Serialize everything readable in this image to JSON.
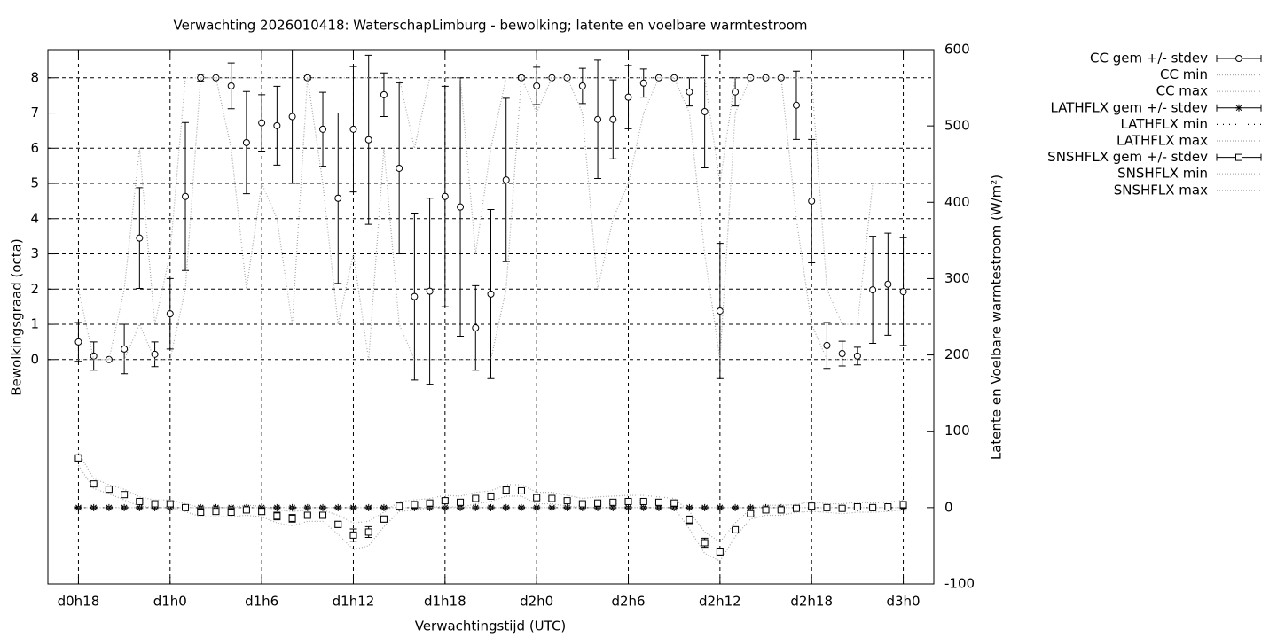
{
  "chart_data": {
    "type": "errorbar-line",
    "title": "Verwachting 2026010418: WaterschapLimburg - bewolking; latente en voelbare warmtestroom",
    "xlabel": "Verwachtingstijd (UTC)",
    "ylabel": "Bewolkingsgraad (octa)",
    "y2label": "Latente en Voelbare warmtestroom (W/m²)",
    "x": [
      18,
      19,
      20,
      21,
      22,
      23,
      24,
      25,
      26,
      27,
      28,
      29,
      30,
      31,
      32,
      33,
      34,
      35,
      36,
      37,
      38,
      39,
      40,
      41,
      42,
      43,
      44,
      45,
      46,
      47,
      48,
      49,
      50,
      51,
      52,
      53,
      54,
      55,
      56,
      57,
      58,
      59,
      60,
      61,
      62,
      63,
      64,
      65,
      66,
      67,
      68,
      69,
      70,
      71,
      72
    ],
    "xlim": [
      16,
      74
    ],
    "xticks": [
      {
        "value": 18,
        "label": "d0h18"
      },
      {
        "value": 24,
        "label": "d1h0"
      },
      {
        "value": 30,
        "label": "d1h6"
      },
      {
        "value": 36,
        "label": "d1h12"
      },
      {
        "value": 42,
        "label": "d1h18"
      },
      {
        "value": 48,
        "label": "d2h0"
      },
      {
        "value": 54,
        "label": "d2h6"
      },
      {
        "value": 60,
        "label": "d2h12"
      },
      {
        "value": 66,
        "label": "d2h18"
      },
      {
        "value": 72,
        "label": "d3h0"
      }
    ],
    "ylim": [
      -6.37,
      8.8
    ],
    "yticks": [
      0,
      1,
      2,
      3,
      4,
      5,
      6,
      7,
      8
    ],
    "y2lim": [
      -100,
      600
    ],
    "y2ticks": [
      -100,
      0,
      100,
      200,
      300,
      400,
      500,
      600
    ],
    "grid": true,
    "legend": "outside-top-right",
    "series": [
      {
        "name": "CC gem +/- stdev",
        "color": "#000000",
        "style": "errorbars",
        "marker": "circle",
        "values": [
          0.5,
          0.1,
          0,
          0.3,
          3.45,
          0.15,
          1.3,
          4.63,
          8,
          8,
          7.77,
          6.16,
          6.72,
          6.64,
          6.9,
          8,
          6.54,
          4.58,
          6.54,
          6.24,
          7.52,
          5.43,
          1.79,
          1.94,
          4.63,
          4.33,
          0.9,
          1.86,
          5.1,
          8,
          7.77,
          8,
          8,
          7.77,
          6.82,
          6.82,
          7.45,
          7.85,
          8,
          8,
          7.6,
          7.04,
          1.38,
          7.6,
          8,
          8,
          8,
          7.22,
          4.5,
          0.4,
          0.17,
          0.1,
          1.98,
          2.14,
          1.93
        ],
        "errors": [
          0.55,
          0.4,
          0,
          0.7,
          1.43,
          0.35,
          1.0,
          2.1,
          0.1,
          0,
          0.65,
          1.45,
          0.8,
          1.12,
          1.9,
          0.05,
          1.05,
          2.42,
          1.78,
          2.4,
          0.62,
          2.43,
          2.37,
          2.64,
          3.13,
          3.67,
          1.2,
          2.4,
          2.32,
          0.05,
          0.53,
          0,
          0,
          0.5,
          1.68,
          1.12,
          0.9,
          0.4,
          0,
          0,
          0.4,
          1.6,
          1.92,
          0.4,
          0,
          0,
          0,
          0.97,
          1.75,
          0.65,
          0.35,
          0.25,
          1.52,
          1.45,
          1.53
        ]
      },
      {
        "name": "CC min",
        "color": "#aaaaaa",
        "style": "dotted",
        "values": [
          0,
          0,
          0,
          0,
          1,
          0,
          0,
          2,
          8,
          8,
          6,
          2,
          5,
          4,
          1,
          8,
          5,
          1,
          3,
          0,
          6,
          1,
          0,
          0,
          0,
          0,
          0,
          0,
          2,
          8,
          7,
          8,
          8,
          7,
          2,
          4,
          5,
          7,
          8,
          8,
          7,
          3,
          0,
          7,
          8,
          8,
          8,
          4,
          1,
          0,
          0,
          0,
          0,
          0,
          0
        ]
      },
      {
        "name": "CC max",
        "color": "#aaaaaa",
        "style": "dotted",
        "values": [
          2,
          0,
          0,
          2,
          6,
          1,
          3,
          8,
          8,
          8,
          8,
          8,
          8,
          8,
          8,
          8,
          8,
          8,
          8,
          8,
          8,
          8,
          6,
          8,
          8,
          8,
          3,
          6,
          8,
          8,
          8,
          8,
          8,
          8,
          8,
          8,
          8,
          8,
          8,
          8,
          8,
          8,
          5,
          8,
          8,
          8,
          8,
          8,
          8,
          2,
          1,
          1,
          5,
          5,
          5
        ]
      },
      {
        "name": "LATHFLX gem +/- stdev",
        "color": "#000000",
        "style": "errorbars",
        "marker": "star",
        "axis": "y2",
        "values": [
          0,
          0,
          0,
          0,
          0,
          0,
          0,
          0,
          0,
          0,
          0,
          0,
          0,
          0,
          0,
          0,
          0,
          0,
          0,
          0,
          0,
          0,
          0,
          0,
          0,
          0,
          0,
          0,
          0,
          0,
          0,
          0,
          0,
          0,
          0,
          0,
          0,
          0,
          0,
          0,
          0,
          0,
          0,
          0,
          0,
          0,
          0,
          0,
          0,
          0,
          0,
          0,
          0,
          0,
          0
        ],
        "errors": [
          1,
          1,
          1,
          1,
          1,
          1,
          1,
          1,
          1,
          1,
          1,
          1,
          1,
          1,
          1,
          1,
          1,
          1,
          1,
          1,
          1,
          1,
          1,
          1,
          1,
          1,
          1,
          1,
          1,
          1,
          1,
          1,
          1,
          1,
          1,
          1,
          1,
          1,
          1,
          1,
          1,
          1,
          1,
          1,
          1,
          1,
          1,
          1,
          1,
          1,
          1,
          1,
          1,
          1,
          1
        ]
      },
      {
        "name": "LATHFLX min",
        "color": "#000000",
        "style": "sparse-dotted",
        "axis": "y2",
        "values": [
          0,
          0,
          0,
          0,
          0,
          0,
          0,
          0,
          0,
          0,
          0,
          0,
          0,
          0,
          0,
          0,
          0,
          0,
          0,
          0,
          0,
          0,
          0,
          0,
          0,
          0,
          0,
          0,
          0,
          0,
          0,
          0,
          0,
          0,
          0,
          0,
          0,
          0,
          0,
          0,
          0,
          0,
          0,
          0,
          0,
          0,
          0,
          0,
          0,
          0,
          0,
          0,
          0,
          0,
          0
        ]
      },
      {
        "name": "LATHFLX max",
        "color": "#aaaaaa",
        "style": "dotted",
        "axis": "y2",
        "values": [
          0,
          0,
          0,
          0,
          0,
          0,
          0,
          0,
          0,
          0,
          0,
          0,
          0,
          0,
          0,
          0,
          0,
          0,
          0,
          0,
          0,
          0,
          0,
          0,
          0,
          0,
          0,
          0,
          0,
          0,
          0,
          0,
          0,
          0,
          0,
          0,
          0,
          0,
          0,
          0,
          0,
          0,
          0,
          0,
          0,
          0,
          0,
          0,
          0,
          0,
          0,
          0,
          0,
          0,
          0
        ]
      },
      {
        "name": "SNSHFLX gem +/- stdev",
        "color": "#000000",
        "style": "errorbars",
        "marker": "square",
        "axis": "y2",
        "values": [
          65,
          31,
          24,
          17,
          8,
          5,
          5,
          0,
          -6,
          -5,
          -6,
          -3,
          -5,
          -11,
          -14,
          -10,
          -10,
          -22,
          -36,
          -32,
          -15,
          2,
          4,
          6,
          9,
          7,
          12,
          15,
          23,
          22,
          13,
          12,
          9,
          5,
          6,
          7,
          8,
          8,
          7,
          6,
          -16,
          -46,
          -58,
          -29,
          -8,
          -3,
          -3,
          -1,
          2,
          0,
          -1,
          1,
          0,
          1,
          4
        ],
        "errors": [
          4,
          1,
          1,
          1,
          2,
          2,
          3,
          1,
          3,
          2,
          3,
          2,
          4,
          5,
          5,
          2,
          2,
          4,
          8,
          7,
          4,
          2,
          2,
          2,
          3,
          3,
          2,
          2,
          4,
          2,
          2,
          2,
          2,
          2,
          2,
          2,
          3,
          2,
          2,
          2,
          5,
          6,
          5,
          3,
          2,
          2,
          2,
          1,
          3,
          1,
          3,
          3,
          2,
          2,
          4
        ]
      },
      {
        "name": "SNSHFLX min",
        "color": "#aaaaaa",
        "style": "dotted",
        "axis": "y2",
        "values": [
          55,
          25,
          18,
          10,
          2,
          0,
          0,
          -5,
          -12,
          -12,
          -12,
          -10,
          -12,
          -20,
          -24,
          -18,
          -18,
          -35,
          -55,
          -50,
          -25,
          -5,
          -3,
          0,
          2,
          0,
          5,
          8,
          15,
          15,
          5,
          5,
          2,
          0,
          0,
          0,
          0,
          0,
          0,
          0,
          -28,
          -60,
          -70,
          -38,
          -15,
          -10,
          -10,
          -6,
          -5,
          -6,
          -8,
          -6,
          -6,
          -5,
          -3
        ]
      },
      {
        "name": "SNSHFLX max",
        "color": "#aaaaaa",
        "style": "dotted",
        "axis": "y2",
        "values": [
          72,
          38,
          30,
          24,
          14,
          10,
          10,
          5,
          0,
          0,
          0,
          3,
          2,
          -3,
          -5,
          -3,
          -3,
          -10,
          -20,
          -18,
          -6,
          8,
          10,
          12,
          16,
          15,
          20,
          22,
          30,
          30,
          20,
          20,
          16,
          12,
          14,
          15,
          16,
          16,
          14,
          12,
          -5,
          -32,
          -45,
          -20,
          -2,
          3,
          3,
          4,
          8,
          5,
          5,
          7,
          6,
          7,
          10
        ]
      }
    ]
  }
}
